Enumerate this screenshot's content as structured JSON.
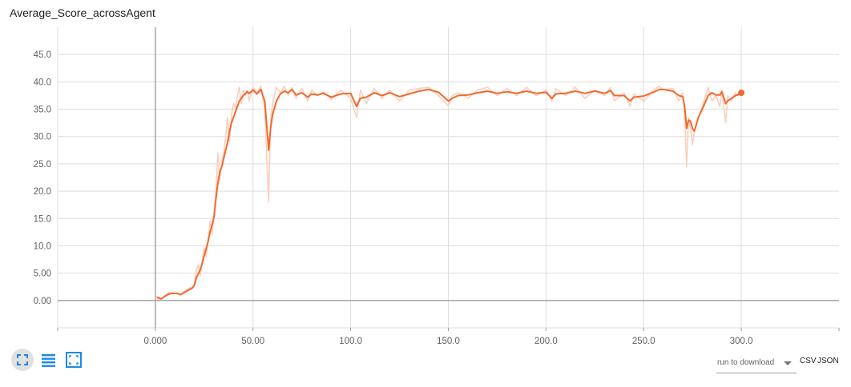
{
  "title": "Average_Score_acrossAgent",
  "toolbar": {
    "fit_icon": "fit-domain-icon",
    "log_icon": "toggle-log-scale-icon",
    "expand_icon": "expand-chart-icon"
  },
  "download": {
    "label": "run to download",
    "csv": "CSV",
    "json": "JSON"
  },
  "colors": {
    "smoothed": "#f3682b",
    "raw": "#fbcfbd",
    "grid": "#dddddd",
    "axis": "#9e9e9e"
  },
  "chart_data": {
    "type": "line",
    "title": "Average_Score_acrossAgent",
    "xlabel": "",
    "ylabel": "",
    "xlim": [
      -50,
      350
    ],
    "ylim": [
      -5,
      50
    ],
    "x_ticks": [
      0,
      50,
      100,
      150,
      200,
      250,
      300
    ],
    "x_tick_labels": [
      "0.000",
      "50.00",
      "100.0",
      "150.0",
      "200.0",
      "250.0",
      "300.0"
    ],
    "y_ticks": [
      0,
      5,
      10,
      15,
      20,
      25,
      30,
      35,
      40,
      45
    ],
    "y_tick_labels": [
      "0.00",
      "5.00",
      "10.0",
      "15.0",
      "20.0",
      "25.0",
      "30.0",
      "35.0",
      "40.0",
      "45.0"
    ],
    "grid": true,
    "series": [
      {
        "role": "raw",
        "x": [
          1,
          3,
          5,
          7,
          9,
          11,
          13,
          15,
          17,
          19,
          20,
          21,
          22,
          23,
          24,
          25,
          26,
          27,
          28,
          29,
          30,
          31,
          32,
          33,
          34,
          35,
          36,
          37,
          38,
          39,
          40,
          41,
          42,
          43,
          44,
          45,
          46,
          47,
          48,
          50,
          52,
          54,
          56,
          58,
          59,
          60,
          62,
          64,
          66,
          68,
          70,
          72,
          75,
          78,
          80,
          83,
          86,
          90,
          95,
          100,
          103,
          105,
          108,
          112,
          116,
          120,
          125,
          130,
          135,
          140,
          145,
          150,
          152,
          155,
          160,
          165,
          170,
          175,
          180,
          185,
          190,
          195,
          200,
          203,
          205,
          210,
          215,
          220,
          225,
          230,
          233,
          235,
          240,
          243,
          245,
          250,
          255,
          258,
          260,
          265,
          268,
          270,
          271,
          272,
          273,
          274,
          275,
          276,
          278,
          280,
          283,
          285,
          287,
          289,
          290,
          292,
          293,
          295,
          297,
          298,
          300
        ],
        "y": [
          0.3,
          0.2,
          0.9,
          1.5,
          1.2,
          1.4,
          1.0,
          1.8,
          2.2,
          2.5,
          3.0,
          5.5,
          6.5,
          4.5,
          7.5,
          9.5,
          8.0,
          11.0,
          14.5,
          12.0,
          15.5,
          20.0,
          27.0,
          22.0,
          25.5,
          27.0,
          30.0,
          33.5,
          29.0,
          34.0,
          36.0,
          35.0,
          37.5,
          39.0,
          36.0,
          38.5,
          37.5,
          38.5,
          36.5,
          39.0,
          38.0,
          39.2,
          35.0,
          18.0,
          33.0,
          36.0,
          39.0,
          38.0,
          39.2,
          37.5,
          39.0,
          37.0,
          38.8,
          36.5,
          38.5,
          37.5,
          38.2,
          36.8,
          38.5,
          37.0,
          33.5,
          38.5,
          36.0,
          38.8,
          37.0,
          38.5,
          36.5,
          38.5,
          38.8,
          39.0,
          37.5,
          35.5,
          37.5,
          38.0,
          37.0,
          38.5,
          39.0,
          37.5,
          38.8,
          37.5,
          39.0,
          37.5,
          38.5,
          36.5,
          38.8,
          37.5,
          39.0,
          37.0,
          38.5,
          37.5,
          39.0,
          36.5,
          38.0,
          35.5,
          37.8,
          36.5,
          38.5,
          39.2,
          38.5,
          38.8,
          36.5,
          38.0,
          34.0,
          24.5,
          33.5,
          31.5,
          28.5,
          31.0,
          33.5,
          35.5,
          39.0,
          36.5,
          37.5,
          35.5,
          38.5,
          32.5,
          37.5,
          36.5,
          38.0,
          37.5,
          38.0
        ]
      },
      {
        "role": "smoothed",
        "x": [
          1,
          3,
          5,
          7,
          9,
          11,
          13,
          15,
          17,
          19,
          20,
          21,
          22,
          23,
          24,
          25,
          26,
          27,
          28,
          29,
          30,
          31,
          32,
          33,
          34,
          35,
          36,
          37,
          38,
          39,
          40,
          41,
          42,
          43,
          44,
          45,
          46,
          47,
          48,
          50,
          52,
          54,
          56,
          58,
          59,
          60,
          62,
          64,
          66,
          68,
          70,
          72,
          75,
          78,
          80,
          83,
          86,
          90,
          95,
          100,
          103,
          105,
          108,
          112,
          116,
          120,
          125,
          130,
          135,
          140,
          145,
          150,
          152,
          155,
          160,
          165,
          170,
          175,
          180,
          185,
          190,
          195,
          200,
          203,
          205,
          210,
          215,
          220,
          225,
          230,
          233,
          235,
          240,
          243,
          245,
          250,
          255,
          258,
          260,
          265,
          268,
          270,
          271,
          272,
          273,
          274,
          275,
          276,
          278,
          280,
          283,
          285,
          287,
          289,
          290,
          292,
          293,
          295,
          297,
          298,
          300
        ],
        "y": [
          0.6,
          0.3,
          0.8,
          1.2,
          1.3,
          1.3,
          1.1,
          1.5,
          1.9,
          2.3,
          2.8,
          4.2,
          4.9,
          5.6,
          6.8,
          8.2,
          9.5,
          10.8,
          12.5,
          13.8,
          15.2,
          18.5,
          21.5,
          23.5,
          24.5,
          26.0,
          27.5,
          29.0,
          31.0,
          32.5,
          33.5,
          34.5,
          35.5,
          36.5,
          37.0,
          37.5,
          37.8,
          38.2,
          37.9,
          38.5,
          37.8,
          38.6,
          36.5,
          27.5,
          31.5,
          34.0,
          36.5,
          37.8,
          38.3,
          38.0,
          38.6,
          37.6,
          38.0,
          37.2,
          37.8,
          37.6,
          37.9,
          37.2,
          37.8,
          37.9,
          35.5,
          37.0,
          37.2,
          38.0,
          37.5,
          38.0,
          37.3,
          37.8,
          38.3,
          38.6,
          38.1,
          36.5,
          37.0,
          37.5,
          37.6,
          38.0,
          38.3,
          37.9,
          38.2,
          37.9,
          38.3,
          37.9,
          38.1,
          37.0,
          37.8,
          37.9,
          38.3,
          37.9,
          38.3,
          37.9,
          38.4,
          37.5,
          37.5,
          36.5,
          37.2,
          37.4,
          38.1,
          38.6,
          38.6,
          38.3,
          37.5,
          37.3,
          35.5,
          31.5,
          33.0,
          32.8,
          31.5,
          31.0,
          33.5,
          35.0,
          37.5,
          38.0,
          37.6,
          37.6,
          38.2,
          36.0,
          36.5,
          37.0,
          37.5,
          37.6,
          38.0
        ]
      }
    ],
    "last_point": {
      "x": 300,
      "y": 38.0
    }
  }
}
